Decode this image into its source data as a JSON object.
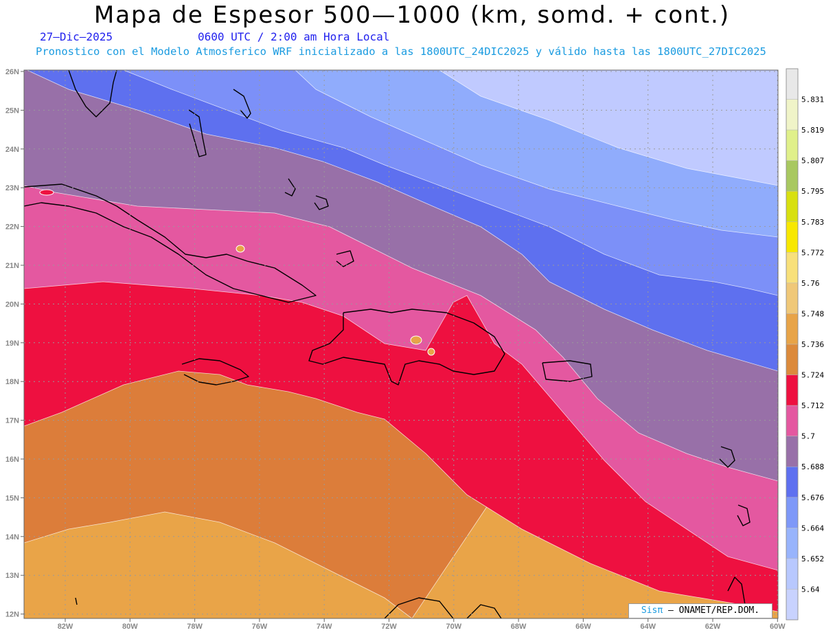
{
  "title": "Mapa de Espesor 500—1000 (km, somd. + cont.)",
  "date": "27—Dic—2025",
  "time": "0600 UTC / 2:00 am Hora Local",
  "forecast": "Pronostico con el Modelo Atmosferico WRF inicializado a las 1800UTC_24DIC2025 y válido hasta las  1800UTC_27DIC2025",
  "credit": {
    "sis": "Sisπ",
    "rest": "– ONAMET/REP.DOM."
  },
  "lat_labels": [
    "26N",
    "25N",
    "24N",
    "23N",
    "22N",
    "21N",
    "20N",
    "19N",
    "18N",
    "17N",
    "16N",
    "15N",
    "14N",
    "13N",
    "12N"
  ],
  "lon_labels": [
    "82W",
    "80W",
    "78W",
    "76W",
    "74W",
    "72W",
    "70W",
    "68W",
    "66W",
    "64W",
    "62W",
    "60W"
  ],
  "colorbar": {
    "labels": [
      "5.831",
      "5.819",
      "5.807",
      "5.795",
      "5.783",
      "5.772",
      "5.76",
      "5.748",
      "5.736",
      "5.724",
      "5.712",
      "5.7",
      "5.688",
      "5.676",
      "5.664",
      "5.652",
      "5.64"
    ],
    "colors": [
      "#e8e8e8",
      "#f0f4c8",
      "#e0f08a",
      "#a8c860",
      "#d8e010",
      "#f8e800",
      "#f8e07a",
      "#f0c878",
      "#e8a448",
      "#dc8a3c",
      "#ee1040",
      "#e458a0",
      "#9870a8",
      "#5e70f0",
      "#7e98f8",
      "#98b4fc",
      "#b8c8fe",
      "#c8d2fe"
    ]
  },
  "map": {
    "band_colors": [
      "#c0caff",
      "#90acfc",
      "#7c90f8",
      "#5e70ef",
      "#9870a8",
      "#e458a0",
      "#ee1040",
      "#dc7d3a",
      "#e48f3e",
      "#e9a448"
    ],
    "coast_color": "#000000"
  }
}
